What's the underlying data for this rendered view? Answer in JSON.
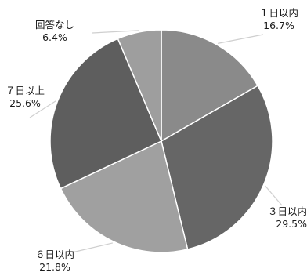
{
  "chart_data": {
    "type": "pie",
    "start_angle_deg": 0,
    "direction": "clockwise",
    "slices": [
      {
        "label": "１日以内",
        "value": "16.7%",
        "share": 16.7,
        "color": "#8a8a8a"
      },
      {
        "label": "３日以内",
        "value": "29.5%",
        "share": 29.5,
        "color": "#666666"
      },
      {
        "label": "６日以内",
        "value": "21.8%",
        "share": 21.8,
        "color": "#a0a0a0"
      },
      {
        "label": "７日以上",
        "value": "25.6%",
        "share": 25.6,
        "color": "#5e5e5e"
      },
      {
        "label": "回答なし",
        "value": "6.4%",
        "share": 6.4,
        "color": "#9e9e9e"
      }
    ]
  }
}
